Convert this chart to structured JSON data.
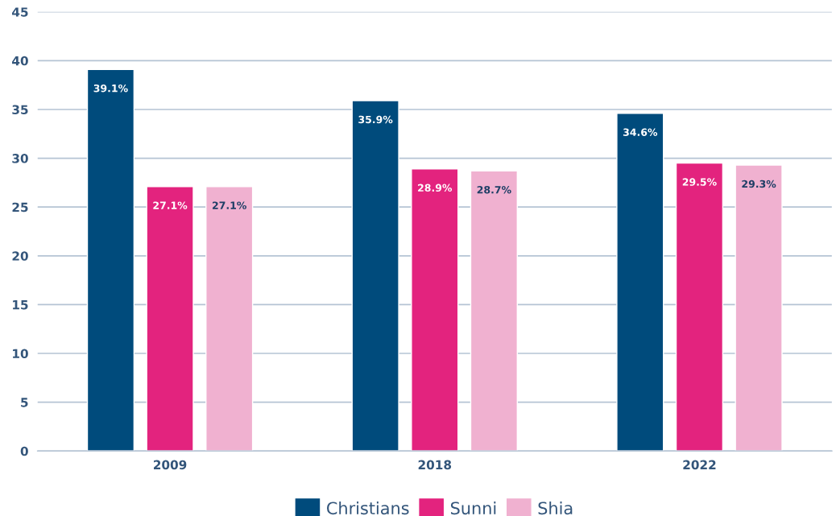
{
  "chart_data": {
    "type": "bar",
    "categories": [
      "2009",
      "2018",
      "2022"
    ],
    "series": [
      {
        "name": "Christians",
        "color": "#004b7c",
        "values": [
          39.1,
          35.9,
          34.6
        ],
        "value_labels": [
          "39.1%",
          "35.9%",
          "34.6%"
        ]
      },
      {
        "name": "Sunni",
        "color": "#e3237e",
        "values": [
          27.1,
          28.9,
          29.5
        ],
        "value_labels": [
          "27.1%",
          "28.9%",
          "29.5%"
        ]
      },
      {
        "name": "Shia",
        "color": "#f0b1d0",
        "values": [
          27.1,
          28.7,
          29.3
        ],
        "value_labels": [
          "27.1%",
          "28.7%",
          "29.3%"
        ]
      }
    ],
    "ylim": [
      0,
      45
    ],
    "yticks": [
      0,
      5,
      10,
      15,
      20,
      25,
      30,
      35,
      40,
      45
    ],
    "grid": "y",
    "legend": "bottom"
  }
}
